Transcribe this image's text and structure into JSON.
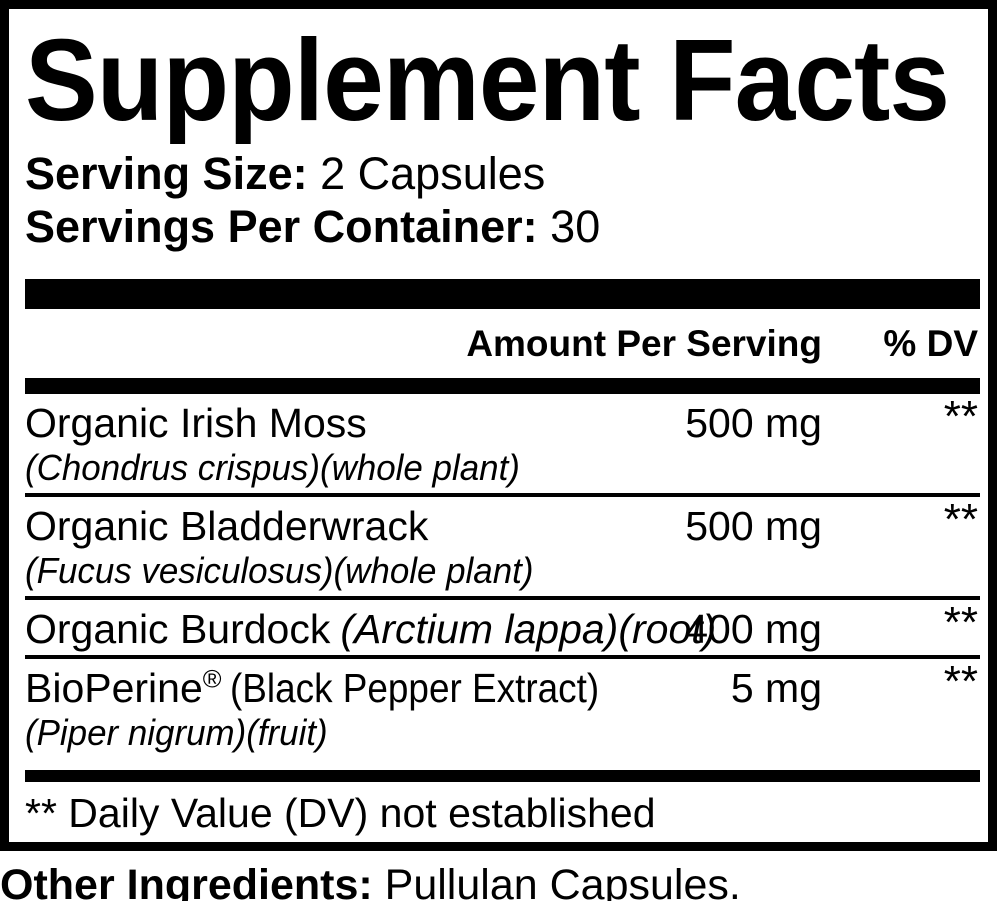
{
  "title": "Supplement Facts",
  "serving": {
    "size_label": "Serving Size:",
    "size_value": "2 Capsules",
    "per_container_label": "Servings Per Container:",
    "per_container_value": "30"
  },
  "table": {
    "amount_header": "Amount Per Serving",
    "dv_header": "% DV",
    "rows": [
      {
        "name": "Organic Irish Moss",
        "botanical": "(Chondrus crispus)(whole plant)",
        "amount": "500 mg",
        "dv": "**"
      },
      {
        "name": "Organic Bladderwrack",
        "botanical": "(Fucus vesiculosus)(whole plant)",
        "amount": "500 mg",
        "dv": "**"
      },
      {
        "name": "Organic Burdock",
        "inline_botanical": "(Arctium lappa)(root)",
        "amount": "400 mg",
        "dv": "**"
      },
      {
        "name": "BioPerine",
        "trademark": "®",
        "descriptor": "(Black Pepper Extract)",
        "botanical": "(Piper nigrum)(fruit)",
        "amount": "5 mg",
        "dv": "**"
      }
    ],
    "footnote": "** Daily Value (DV) not established"
  },
  "other_ingredients": {
    "label": "Other Ingredients:",
    "value": "Pullulan Capsules."
  },
  "colors": {
    "text": "#000000",
    "background": "#ffffff"
  }
}
